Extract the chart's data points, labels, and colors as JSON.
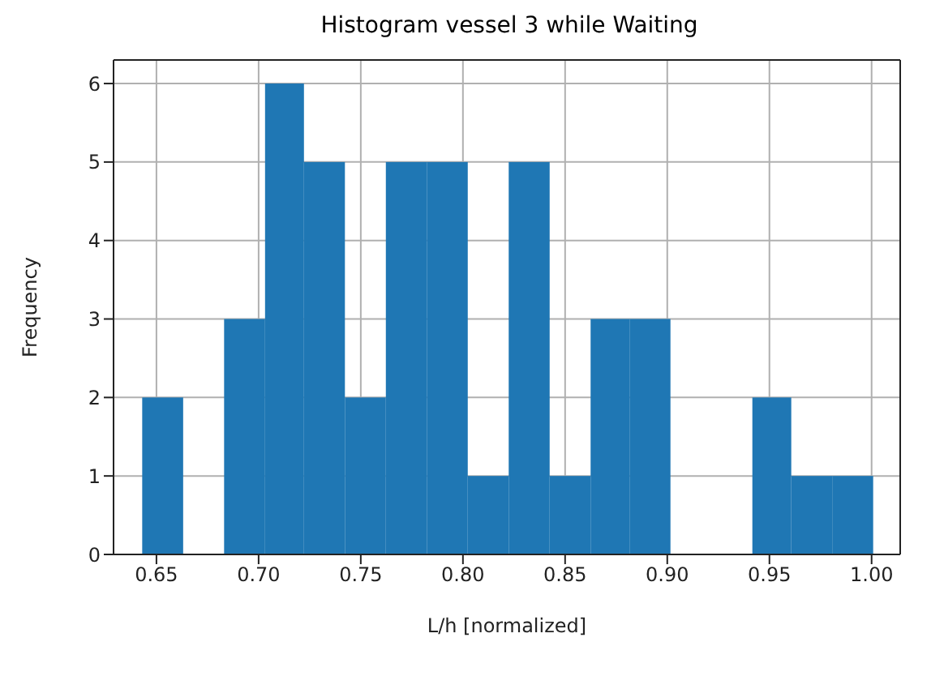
{
  "chart_data": {
    "type": "histogram",
    "title": "Histogram vessel 3 while Waiting",
    "xlabel": "L/h [normalized]",
    "ylabel": "Frequency",
    "bins": [
      0.643,
      0.663,
      0.683,
      0.703,
      0.722,
      0.742,
      0.762,
      0.782,
      0.802,
      0.822,
      0.842,
      0.862,
      0.881,
      0.901,
      0.941,
      0.96,
      0.98,
      1.0
    ],
    "values": [
      2,
      0,
      3,
      6,
      5,
      2,
      5,
      5,
      1,
      5,
      1,
      3,
      3,
      0,
      2,
      1,
      1
    ],
    "color": "#1f77b4",
    "xlim": [
      0.629,
      1.014
    ],
    "xticks": [
      0.65,
      {
        "value": 0.7,
        "label": "0.70"
      },
      0.75,
      {
        "value": 0.8,
        "label": "0.80"
      },
      0.85,
      {
        "value": 0.9,
        "label": "0.90"
      },
      0.95,
      {
        "value": 1,
        "label": "1.00"
      }
    ],
    "ylim": [
      0,
      6.3
    ],
    "yticks": [
      0,
      1,
      2,
      3,
      4,
      5,
      6
    ],
    "grid": true
  }
}
